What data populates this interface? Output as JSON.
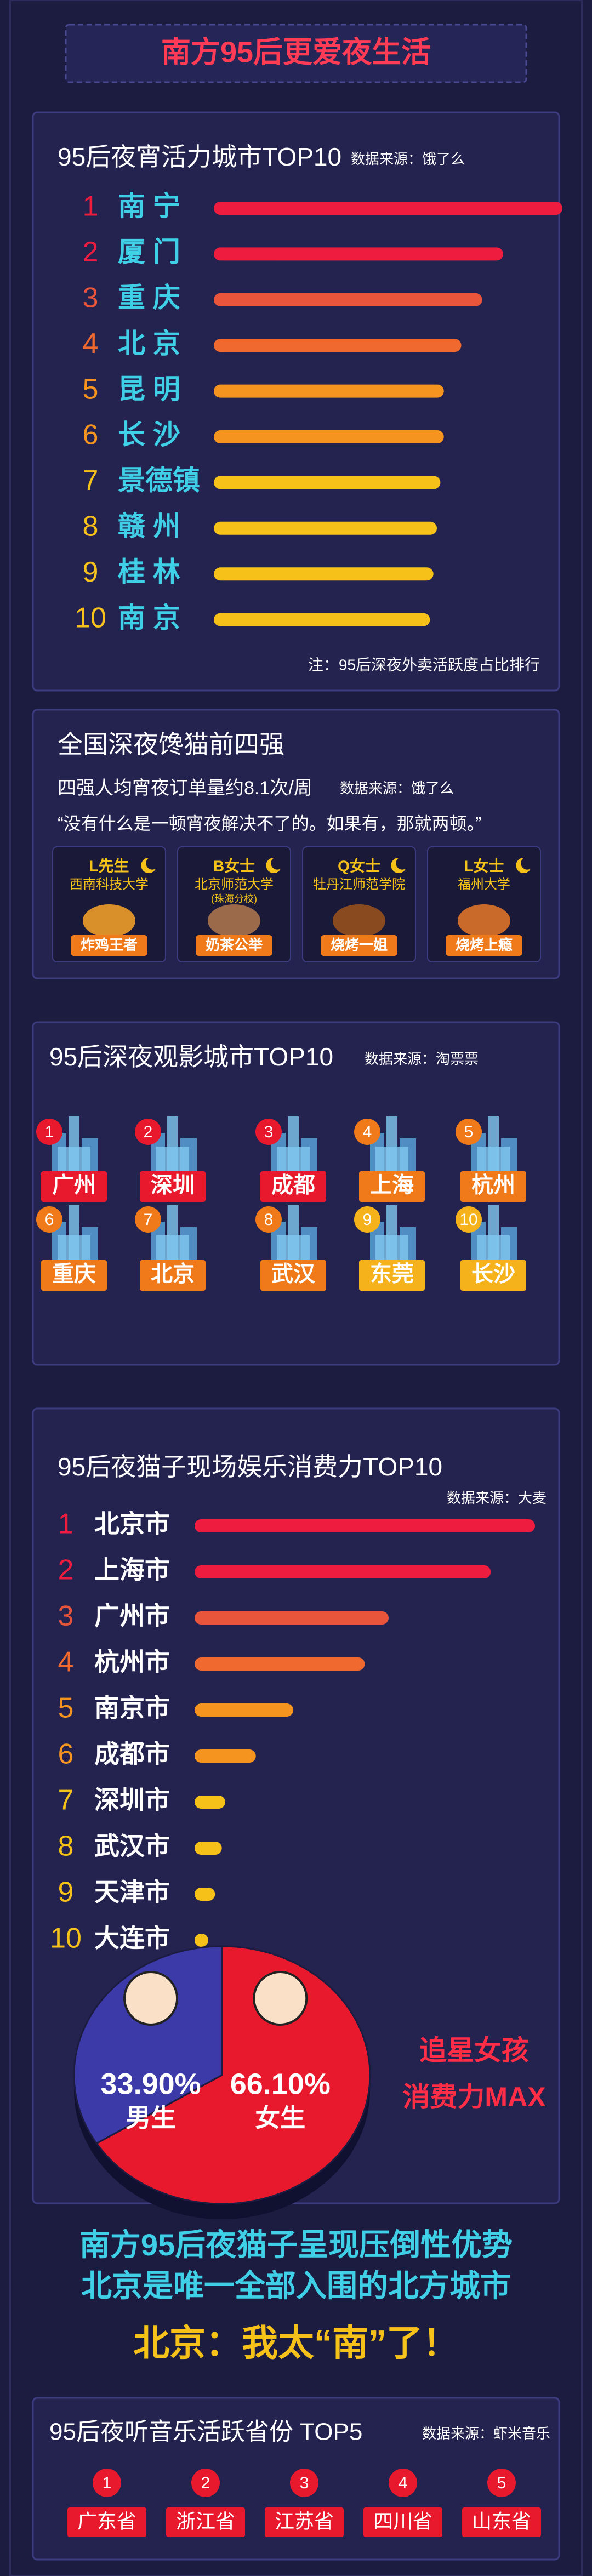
{
  "header": {
    "title": "南方95后更爱夜生活"
  },
  "chart_data": [
    {
      "type": "bar",
      "title": "95后夜宵活力城市TOP10",
      "source": "数据来源：饿了么",
      "note": "注：95后深夜外卖活跃度占比排行",
      "ranks": [
        1,
        2,
        3,
        4,
        5,
        6,
        7,
        8,
        9,
        10
      ],
      "categories": [
        "南 宁",
        "厦 门",
        "重 庆",
        "北 京",
        "昆 明",
        "长 沙",
        "景德镇",
        "赣 州",
        "桂 林",
        "南 京"
      ],
      "values": [
        100,
        83,
        77,
        71,
        66,
        66,
        65,
        64,
        63,
        62
      ],
      "colors": [
        "#ee1c3f",
        "#ee1c3f",
        "#e8553a",
        "#f0692e",
        "#f5941f",
        "#f5941f",
        "#f6c21a",
        "#f6c21a",
        "#f6c21a",
        "#f6c21a"
      ],
      "xlim": [
        0,
        100
      ]
    },
    {
      "type": "bar",
      "title": "95后夜猫子现场娱乐消费力TOP10",
      "source": "数据来源：大麦",
      "ranks": [
        1,
        2,
        3,
        4,
        5,
        6,
        7,
        8,
        9,
        10
      ],
      "categories": [
        "北京市",
        "上海市",
        "广州市",
        "杭州市",
        "南京市",
        "成都市",
        "深圳市",
        "武汉市",
        "天津市",
        "大连市"
      ],
      "values": [
        100,
        87,
        57,
        50,
        29,
        18,
        9,
        8,
        6,
        4
      ],
      "colors": [
        "#ee1c3f",
        "#ee1c3f",
        "#e8553a",
        "#f0692e",
        "#f5941f",
        "#f5941f",
        "#f6c21a",
        "#f6c21a",
        "#f6c21a",
        "#f6c21a"
      ],
      "xlim": [
        0,
        100
      ]
    },
    {
      "type": "pie",
      "categories": [
        "男生",
        "女生"
      ],
      "values": [
        33.9,
        66.1
      ],
      "value_labels": [
        "33.90%",
        "66.10%"
      ],
      "colors": [
        "#3b3aa8",
        "#e8192c"
      ],
      "annotation": [
        "追星女孩",
        "消费力MAX"
      ]
    }
  ],
  "snack": {
    "title": "全国深夜馋猫前四强",
    "subtitle": "四强人均宵夜订单量约8.1次/周",
    "source": "数据来源：饿了么",
    "quote": "“没有什么是一顿宵夜解决不了的。如果有，那就两顿。”",
    "cards": [
      {
        "name": "L先生",
        "school": [
          "西南科技大学"
        ],
        "tag": "炸鸡王者"
      },
      {
        "name": "B女士",
        "school": [
          "北京师范大学",
          "(珠海分校)"
        ],
        "tag": "奶茶公举"
      },
      {
        "name": "Q女士",
        "school": [
          "牡丹江师范学院"
        ],
        "tag": "烧烤一姐"
      },
      {
        "name": "L女士",
        "school": [
          "福州大学"
        ],
        "tag": "烧烤上瘾"
      }
    ]
  },
  "movie": {
    "title": "95后深夜观影城市TOP10",
    "source": "数据来源：淘票票",
    "ranks": [
      1,
      2,
      3,
      4,
      5,
      6,
      7,
      8,
      9,
      10
    ],
    "cities": [
      "广州",
      "深圳",
      "成都",
      "上海",
      "杭州",
      "重庆",
      "北京",
      "武汉",
      "东莞",
      "长沙"
    ],
    "colors": [
      "#e8192c",
      "#e8192c",
      "#e8192c",
      "#f07a1a",
      "#f07a1a",
      "#f07a1a",
      "#f07a1a",
      "#f07a1a",
      "#f5b21a",
      "#f5b21a"
    ]
  },
  "summary": [
    "南方95后夜猫子呈现压倒性优势",
    "北京是唯一全部入围的北方城市",
    "北京：我太“南”了！"
  ],
  "music": {
    "title": "95后夜听音乐活跃省份 TOP5",
    "source": "数据来源：虾米音乐",
    "ranks": [
      1,
      2,
      3,
      4,
      5
    ],
    "provinces": [
      "广东省",
      "浙江省",
      "江苏省",
      "四川省",
      "山东省"
    ]
  }
}
